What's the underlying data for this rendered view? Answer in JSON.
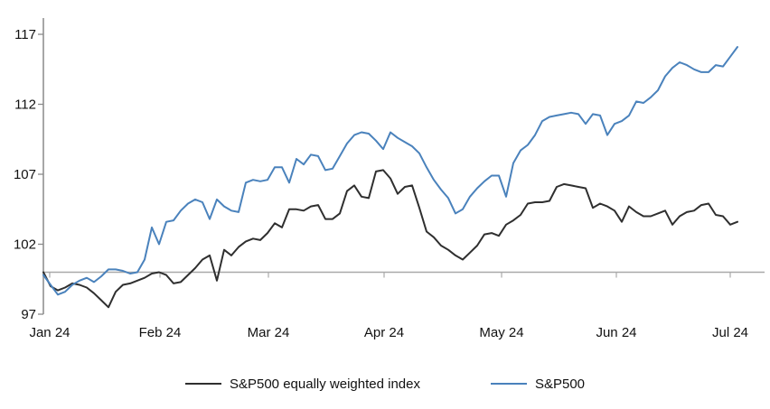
{
  "chart_data": {
    "type": "line",
    "title": "",
    "x_tick_labels": [
      "Jan 24",
      "Feb 24",
      "Mar 24",
      "Apr 24",
      "May 24",
      "Jun 24",
      "Jul 24"
    ],
    "y_tick_labels": [
      "117",
      "112",
      "107",
      "102",
      "97"
    ],
    "y_ticks": [
      117,
      112,
      107,
      102,
      97
    ],
    "ylim": [
      97,
      118
    ],
    "baseline_value": 100,
    "grid": "off",
    "legend_position": "bottom",
    "axis_color": "#8a8a8a",
    "baseline_color": "#a9a9a9",
    "series": [
      {
        "name": "S&P500 equally weighted index",
        "color": "#2f2f2f",
        "values": [
          100.0,
          99.0,
          98.7,
          98.9,
          99.2,
          99.1,
          98.9,
          98.5,
          98.0,
          97.5,
          98.6,
          99.1,
          99.2,
          99.4,
          99.6,
          99.9,
          100.0,
          99.8,
          99.2,
          99.3,
          99.8,
          100.3,
          100.9,
          101.2,
          99.4,
          101.6,
          101.2,
          101.8,
          102.2,
          102.4,
          102.3,
          102.8,
          103.5,
          103.2,
          104.5,
          104.5,
          104.4,
          104.7,
          104.8,
          103.8,
          103.8,
          104.2,
          105.8,
          106.2,
          105.4,
          105.3,
          107.2,
          107.3,
          106.7,
          105.6,
          106.1,
          106.2,
          104.6,
          102.9,
          102.5,
          101.9,
          101.6,
          101.2,
          100.9,
          101.4,
          101.9,
          102.7,
          102.8,
          102.6,
          103.4,
          103.7,
          104.1,
          104.9,
          105.0,
          105.0,
          105.1,
          106.1,
          106.3,
          106.2,
          106.1,
          106.0,
          104.6,
          104.9,
          104.7,
          104.4,
          103.6,
          104.7,
          104.3,
          104.0,
          104.0,
          104.2,
          104.4,
          103.4,
          104.0,
          104.3,
          104.4,
          104.8,
          104.9,
          104.1,
          104.0,
          103.4,
          103.6
        ]
      },
      {
        "name": "S&P500",
        "color": "#4a82bc",
        "values": [
          99.8,
          99.1,
          98.4,
          98.6,
          99.1,
          99.4,
          99.6,
          99.3,
          99.7,
          100.2,
          100.2,
          100.1,
          99.9,
          100.0,
          100.9,
          103.2,
          102.0,
          103.6,
          103.7,
          104.4,
          104.9,
          105.2,
          105.0,
          103.8,
          105.2,
          104.7,
          104.4,
          104.3,
          106.4,
          106.6,
          106.5,
          106.6,
          107.5,
          107.5,
          106.4,
          108.1,
          107.7,
          108.4,
          108.3,
          107.3,
          107.4,
          108.3,
          109.2,
          109.8,
          110.0,
          109.9,
          109.4,
          108.8,
          110.0,
          109.6,
          109.3,
          109.0,
          108.5,
          107.5,
          106.6,
          105.9,
          105.3,
          104.2,
          104.5,
          105.4,
          106.0,
          106.5,
          106.9,
          106.9,
          105.4,
          107.8,
          108.7,
          109.1,
          109.8,
          110.8,
          111.1,
          111.2,
          111.3,
          111.4,
          111.3,
          110.6,
          111.3,
          111.2,
          109.8,
          110.6,
          110.8,
          111.2,
          112.2,
          112.1,
          112.5,
          113.0,
          114.0,
          114.6,
          115.0,
          114.8,
          114.5,
          114.3,
          114.3,
          114.8,
          114.7,
          115.4,
          116.1
        ]
      }
    ]
  }
}
